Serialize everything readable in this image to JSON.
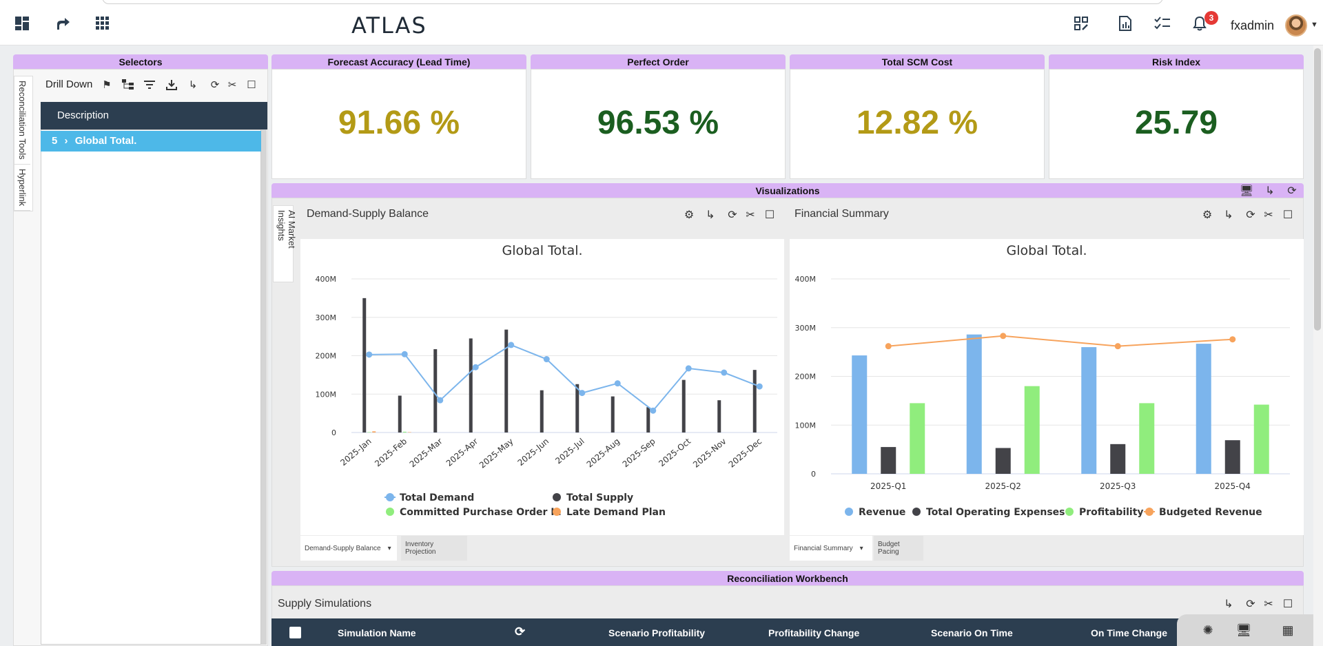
{
  "app": {
    "logo": "ATLAS",
    "username": "fxadmin",
    "notifications": "3"
  },
  "kpis": [
    {
      "title": "Forecast Accuracy (Lead Time)",
      "value": "91.66 %",
      "color": "#b39a16"
    },
    {
      "title": "Perfect Order",
      "value": "96.53 %",
      "color": "#1b5e20"
    },
    {
      "title": "Total SCM Cost",
      "value": "12.82 %",
      "color": "#b39a16"
    },
    {
      "title": "Risk Index",
      "value": "25.79",
      "color": "#1b5e20"
    }
  ],
  "selectors": {
    "header": "Selectors",
    "drill_down": "Drill Down",
    "description_header": "Description",
    "tree_item_count": "5",
    "tree_item_label": "Global Total.",
    "side_tabs": [
      "Reconciliation Tools",
      "Hyperlink"
    ]
  },
  "visualizations": {
    "header": "Visualizations",
    "side_tab": "AI Market Insights",
    "left": {
      "title": "Demand-Supply Balance",
      "tabs": [
        "Demand-Supply Balance",
        "Inventory Projection"
      ]
    },
    "right": {
      "title": "Financial Summary",
      "tabs": [
        "Financial Summary",
        "Budget Pacing"
      ]
    }
  },
  "workbench": {
    "header": "Reconciliation Workbench",
    "title": "Supply Simulations",
    "columns": [
      "Simulation Name",
      "Scenario Profitability",
      "Profitability Change",
      "Scenario On Time",
      "On Time Change"
    ]
  },
  "chart_data": [
    {
      "type": "bar",
      "title": "Global Total.",
      "categories": [
        "2025-Jan",
        "2025-Feb",
        "2025-Mar",
        "2025-Apr",
        "2025-May",
        "2025-Jun",
        "2025-Jul",
        "2025-Aug",
        "2025-Sep",
        "2025-Oct",
        "2025-Nov",
        "2025-Dec"
      ],
      "ylim": [
        0,
        400
      ],
      "y_ticks": [
        "0",
        "100M",
        "200M",
        "300M",
        "400M"
      ],
      "series": [
        {
          "name": "Total Demand",
          "type": "line",
          "color": "#7cb5ec",
          "values": [
            203,
            204,
            84,
            170,
            228,
            191,
            103,
            128,
            57,
            167,
            156,
            120
          ]
        },
        {
          "name": "Total Supply",
          "type": "bar",
          "color": "#434348",
          "values": [
            350,
            96,
            217,
            245,
            268,
            110,
            126,
            94,
            66,
            137,
            84,
            163
          ]
        },
        {
          "name": "Committed Purchase Order In",
          "type": "bar",
          "color": "#90ed7d",
          "values": [
            1,
            2,
            0,
            0,
            0,
            0,
            0,
            0,
            0,
            0,
            0,
            0
          ]
        },
        {
          "name": "Late Demand Plan",
          "type": "bar",
          "color": "#f7a35c",
          "values": [
            3,
            1,
            0,
            0,
            0,
            0,
            0,
            0,
            0,
            0,
            0,
            0
          ]
        }
      ],
      "legend": "bottom"
    },
    {
      "type": "bar",
      "title": "Global Total.",
      "categories": [
        "2025-Q1",
        "2025-Q2",
        "2025-Q3",
        "2025-Q4"
      ],
      "ylim": [
        0,
        400
      ],
      "y_ticks": [
        "0",
        "100M",
        "200M",
        "300M",
        "400M"
      ],
      "series": [
        {
          "name": "Revenue",
          "type": "bar",
          "color": "#7cb5ec",
          "values": [
            243,
            286,
            260,
            267
          ]
        },
        {
          "name": "Total Operating Expenses",
          "type": "bar",
          "color": "#434348",
          "values": [
            55,
            53,
            61,
            69
          ]
        },
        {
          "name": "Profitability",
          "type": "bar",
          "color": "#90ed7d",
          "values": [
            145,
            180,
            145,
            142
          ]
        },
        {
          "name": "Budgeted Revenue",
          "type": "line",
          "color": "#f7a35c",
          "values": [
            262,
            283,
            262,
            276
          ]
        }
      ],
      "legend": "bottom"
    }
  ]
}
